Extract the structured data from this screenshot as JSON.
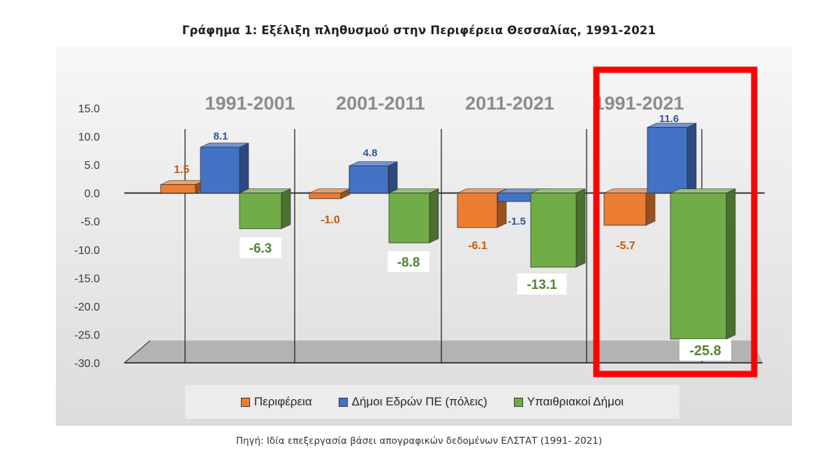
{
  "title": "Γράφημα 1: Εξέλιξη πληθυσμού στην Περιφέρεια Θεσσαλίας, 1991-2021",
  "source": "Πηγή: Ιδία επεξεργασία βάσει απογραφικών δεδομένων ΕΛΣΤΑΤ (1991- 2021)",
  "chart_data": {
    "type": "bar",
    "categories": [
      "1991-2001",
      "2001-2011",
      "2011-2021",
      "1991-2021"
    ],
    "series": [
      {
        "name": "Περιφέρεια",
        "values": [
          1.5,
          -1.0,
          -6.1,
          -5.7
        ],
        "color": "#ed7d31",
        "label_color": "#c55a11"
      },
      {
        "name": "Δήμοι Εδρών ΠΕ (πόλεις)",
        "values": [
          8.1,
          4.8,
          -1.5,
          11.6
        ],
        "color": "#4472c4",
        "label_color": "#2f5597"
      },
      {
        "name": "Υπαιθριακοί Δήμοι",
        "values": [
          -6.3,
          -8.8,
          -13.1,
          -25.8
        ],
        "color": "#70ad47",
        "label_color": "#548235"
      }
    ],
    "ylim": [
      -30,
      15
    ],
    "yticks": [
      "15.0",
      "10.0",
      "5.0",
      "0.0",
      "-5.0",
      "-10.0",
      "-15.0",
      "-20.0",
      "-25.0",
      "-30.0"
    ],
    "data_labels": {
      "series0": [
        "1.5",
        "-1.0",
        "-6.1",
        "-5.7"
      ],
      "series1": [
        "8.1",
        "4.8",
        "-1.5",
        "11.6"
      ],
      "series2": [
        "-6.3",
        "-8.8",
        "-13.1",
        "-25.8"
      ]
    },
    "highlight_category": "1991-2021",
    "highlight_color": "#ff0000",
    "grid": false,
    "legend_position": "bottom"
  }
}
